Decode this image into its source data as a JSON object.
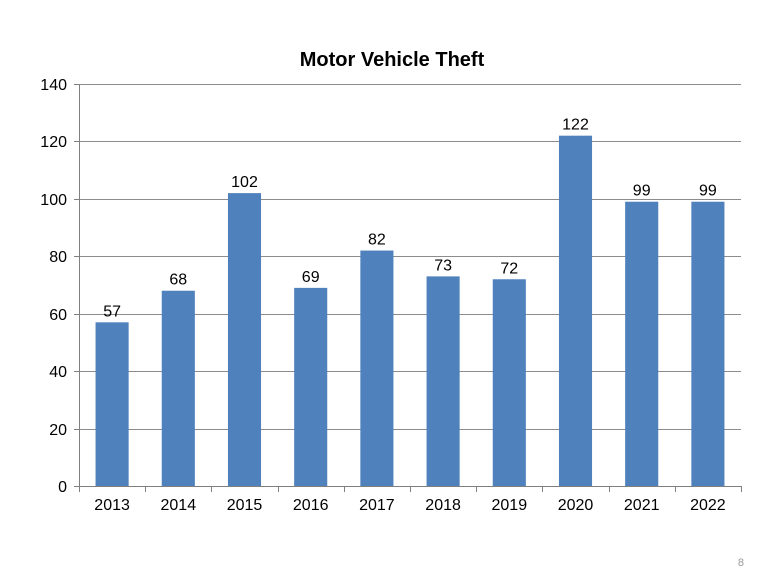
{
  "chart_data": {
    "type": "bar",
    "title": "Motor Vehicle Theft",
    "categories": [
      "2013",
      "2014",
      "2015",
      "2016",
      "2017",
      "2018",
      "2019",
      "2020",
      "2021",
      "2022"
    ],
    "values": [
      57,
      68,
      102,
      69,
      82,
      73,
      72,
      122,
      99,
      99
    ],
    "ylim": [
      0,
      140
    ],
    "yticks": [
      0,
      20,
      40,
      60,
      80,
      100,
      120,
      140
    ],
    "xlabel": "",
    "ylabel": "",
    "grid": true,
    "legend": "none",
    "bar_color": "#4f81bd"
  },
  "page_number": "8"
}
